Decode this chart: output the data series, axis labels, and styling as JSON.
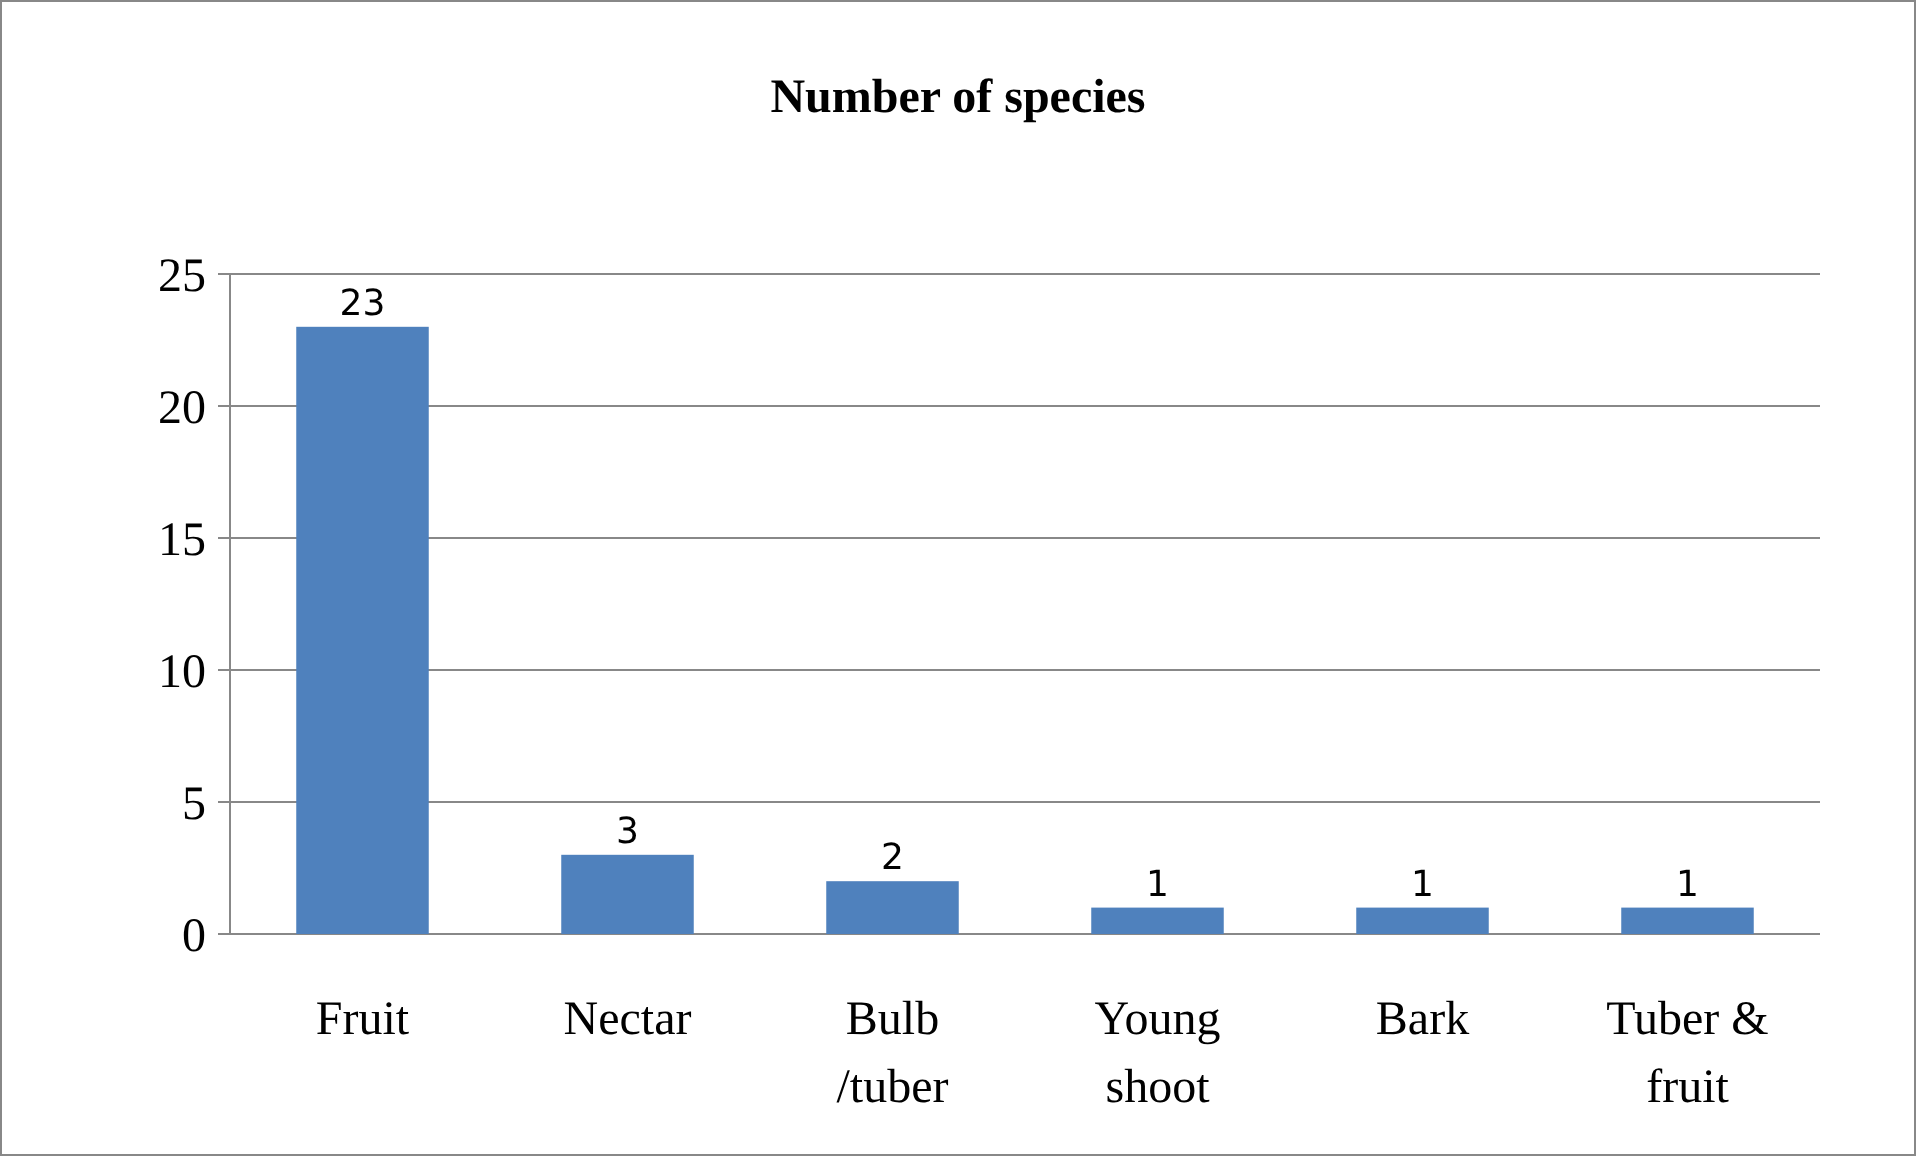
{
  "chart_data": {
    "type": "bar",
    "title": "Number of species",
    "categories": [
      "Fruit",
      "Nectar",
      "Bulb /tuber",
      "Young shoot",
      "Bark",
      "Tuber & fruit"
    ],
    "values": [
      23,
      3,
      2,
      1,
      1,
      1
    ],
    "color": "#4f81bd",
    "ylim": [
      0,
      25
    ],
    "yticks": [
      0,
      5,
      10,
      15,
      20,
      25
    ],
    "grid": "y",
    "data_labels": true
  }
}
